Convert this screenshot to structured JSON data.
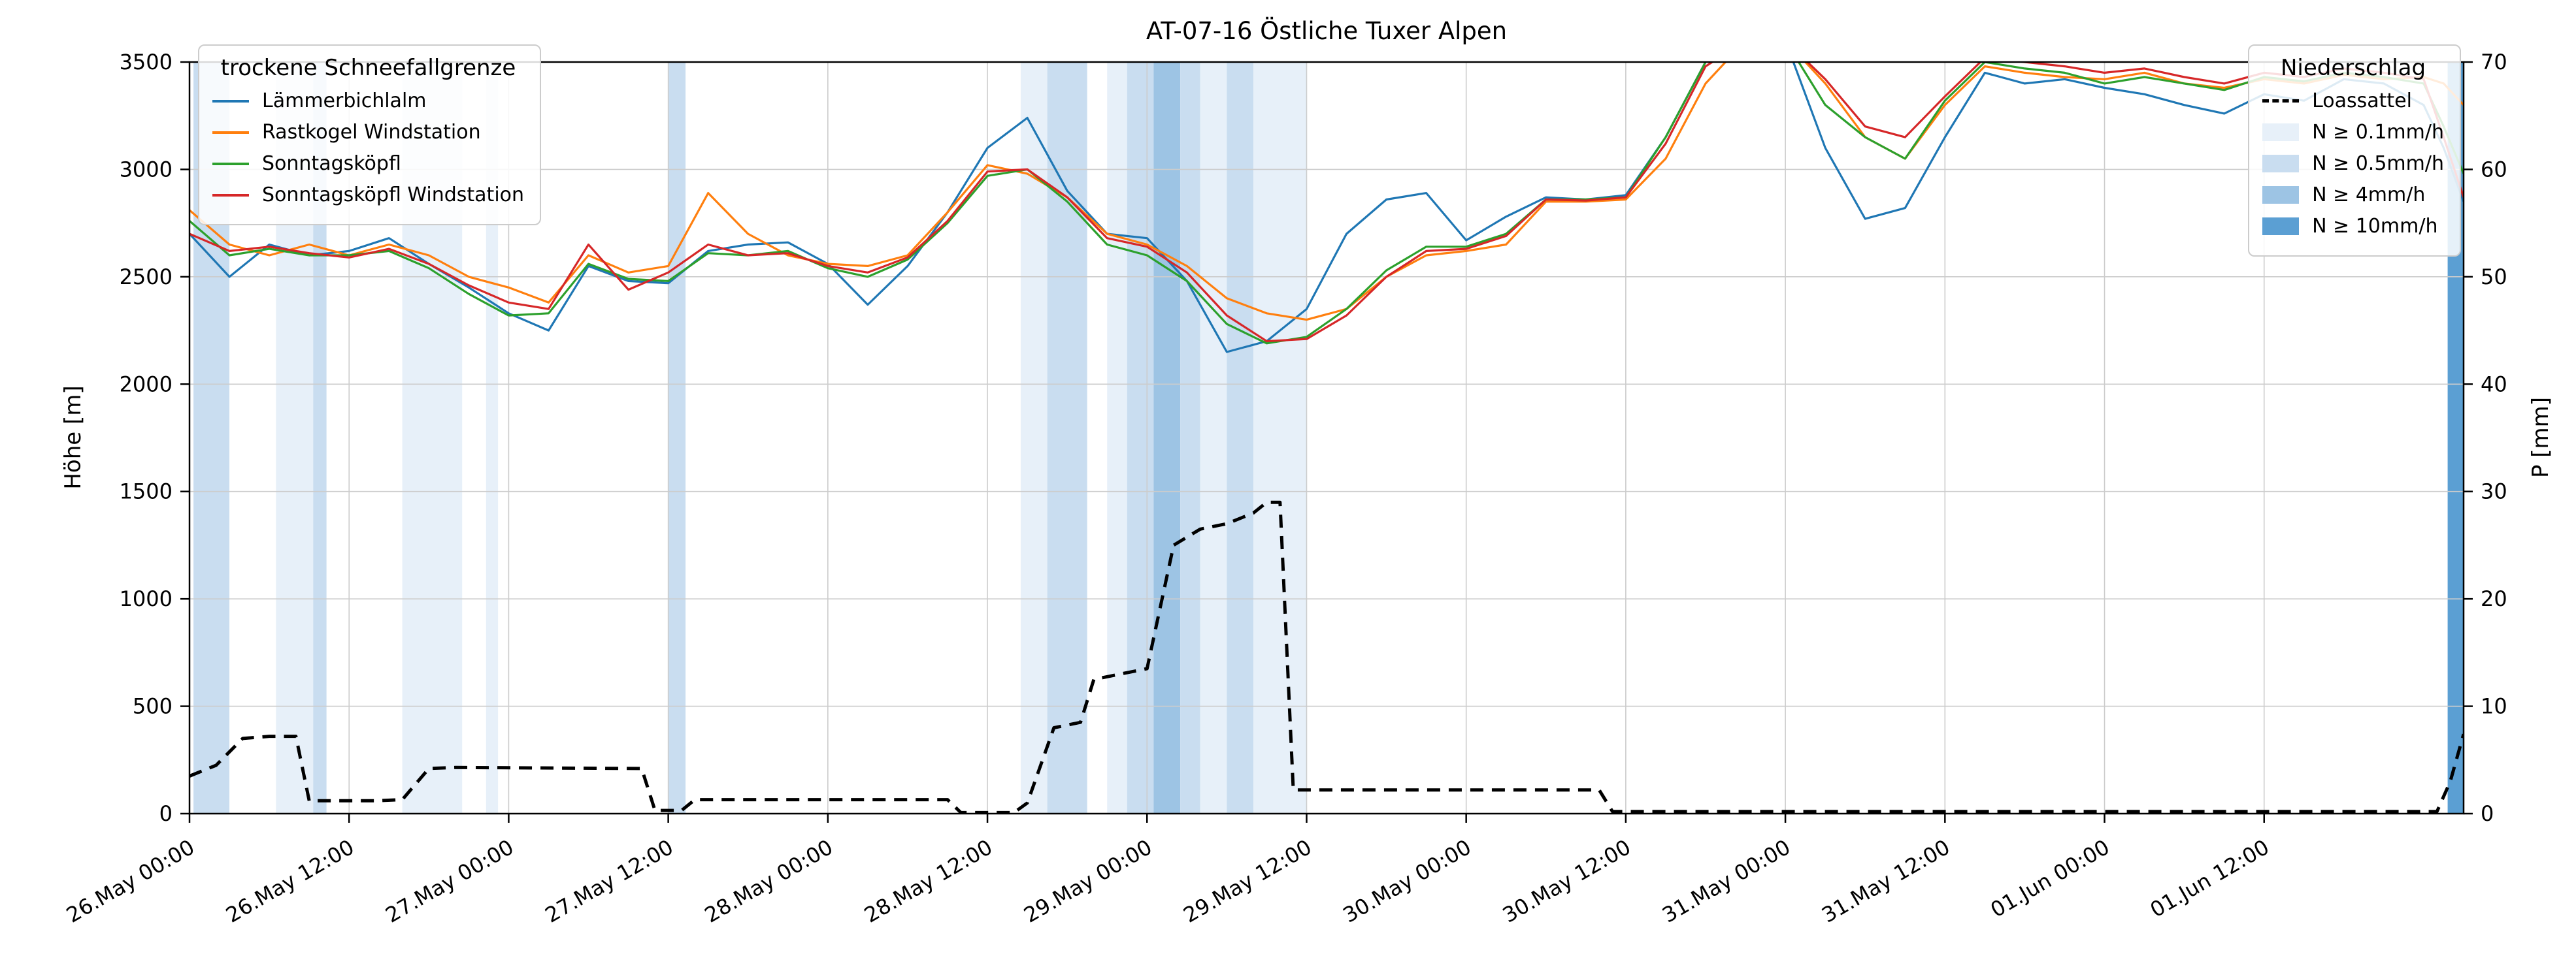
{
  "title": "AT-07-16 Östliche Tuxer Alpen",
  "axes": {
    "y_left_label": "Höhe [m]",
    "y_right_label": "P [mm]"
  },
  "legend_lines": {
    "title": "trockene Schneefallgrenze",
    "entries": [
      {
        "label": "Lämmerbichlalm",
        "color": "#1f77b4"
      },
      {
        "label": "Rastkogel Windstation",
        "color": "#ff7f0e"
      },
      {
        "label": "Sonntagsköpfl",
        "color": "#2ca02c"
      },
      {
        "label": "Sonntagsköpfl Windstation",
        "color": "#d62728"
      }
    ]
  },
  "legend_precip": {
    "title": "Niederschlag",
    "line_entry": {
      "label": "Loassattel",
      "color": "#000000"
    },
    "band_entries": [
      {
        "label": "N ≥ 0.1mm/h",
        "color": "#e7f0f9"
      },
      {
        "label": "N ≥ 0.5mm/h",
        "color": "#c9ddf0"
      },
      {
        "label": "N ≥ 4mm/h",
        "color": "#9dc4e4"
      },
      {
        "label": "N ≥ 10mm/h",
        "color": "#5b9fd3"
      }
    ]
  },
  "chart_data": {
    "type": "line",
    "title": "AT-07-16 Östliche Tuxer Alpen",
    "xlabel": "",
    "ylabel_left": "Höhe [m]",
    "ylabel_right": "P [mm]",
    "x_unit": "hours since 26.May 00:00",
    "x_range": [
      0,
      171
    ],
    "ylim_left": [
      0,
      3500
    ],
    "ylim_right": [
      0,
      70
    ],
    "grid": true,
    "y_left_ticks": [
      0,
      500,
      1000,
      1500,
      2000,
      2500,
      3000,
      3500
    ],
    "y_right_ticks": [
      0,
      10,
      20,
      30,
      40,
      50,
      60,
      70
    ],
    "x_ticks": [
      {
        "hour": 0,
        "label": "26.May 00:00"
      },
      {
        "hour": 12,
        "label": "26.May 12:00"
      },
      {
        "hour": 24,
        "label": "27.May 00:00"
      },
      {
        "hour": 36,
        "label": "27.May 12:00"
      },
      {
        "hour": 48,
        "label": "28.May 00:00"
      },
      {
        "hour": 60,
        "label": "28.May 12:00"
      },
      {
        "hour": 72,
        "label": "29.May 00:00"
      },
      {
        "hour": 84,
        "label": "29.May 12:00"
      },
      {
        "hour": 96,
        "label": "30.May 00:00"
      },
      {
        "hour": 108,
        "label": "30.May 12:00"
      },
      {
        "hour": 120,
        "label": "31.May 00:00"
      },
      {
        "hour": 132,
        "label": "31.May 12:00"
      },
      {
        "hour": 144,
        "label": "01.Jun 00:00"
      },
      {
        "hour": 156,
        "label": "01.Jun 12:00"
      }
    ],
    "x_hours": [
      0,
      3,
      6,
      9,
      12,
      15,
      18,
      21,
      24,
      27,
      30,
      33,
      36,
      39,
      42,
      45,
      48,
      51,
      54,
      57,
      60,
      63,
      66,
      69,
      72,
      75,
      78,
      81,
      84,
      87,
      90,
      93,
      96,
      99,
      102,
      105,
      108,
      111,
      114,
      117,
      120,
      123,
      126,
      129,
      132,
      135,
      138,
      141,
      144,
      147,
      150,
      153,
      156,
      159,
      162,
      165,
      168,
      169.5,
      171
    ],
    "series": [
      {
        "id": "laemmerbichlalm",
        "name": "Lämmerbichlalm",
        "color": "#1f77b4",
        "axis": "left",
        "style": "solid",
        "values": [
          2700,
          2500,
          2650,
          2600,
          2620,
          2680,
          2560,
          2450,
          2330,
          2250,
          2550,
          2480,
          2470,
          2620,
          2650,
          2660,
          2560,
          2370,
          2550,
          2800,
          3100,
          3240,
          2900,
          2700,
          2680,
          2480,
          2150,
          2200,
          2350,
          2700,
          2860,
          2890,
          2670,
          2780,
          2870,
          2860,
          2880,
          3150,
          3500,
          3600,
          3600,
          3100,
          2770,
          2820,
          3150,
          3450,
          3400,
          3420,
          3380,
          3350,
          3300,
          3260,
          3350,
          3320,
          3420,
          3400,
          3300,
          3100,
          2850
        ]
      },
      {
        "id": "rastkogel-windstation",
        "name": "Rastkogel Windstation",
        "color": "#ff7f0e",
        "axis": "left",
        "style": "solid",
        "values": [
          2810,
          2650,
          2600,
          2650,
          2600,
          2650,
          2600,
          2500,
          2450,
          2380,
          2600,
          2520,
          2550,
          2890,
          2700,
          2600,
          2560,
          2550,
          2600,
          2800,
          3020,
          2980,
          2870,
          2700,
          2650,
          2550,
          2400,
          2330,
          2300,
          2350,
          2500,
          2600,
          2620,
          2650,
          2850,
          2850,
          2860,
          3050,
          3400,
          3600,
          3600,
          3400,
          3150,
          3050,
          3300,
          3480,
          3450,
          3430,
          3420,
          3450,
          3400,
          3380,
          3420,
          3400,
          3440,
          3420,
          3430,
          3400,
          3300
        ]
      },
      {
        "id": "sonntagskoepfl",
        "name": "Sonntagsköpfl",
        "color": "#2ca02c",
        "axis": "left",
        "style": "solid",
        "values": [
          2760,
          2600,
          2630,
          2600,
          2600,
          2620,
          2540,
          2420,
          2320,
          2330,
          2560,
          2490,
          2480,
          2610,
          2600,
          2620,
          2540,
          2500,
          2580,
          2750,
          2970,
          3000,
          2850,
          2650,
          2600,
          2480,
          2280,
          2190,
          2220,
          2350,
          2530,
          2640,
          2640,
          2700,
          2860,
          2860,
          2870,
          3150,
          3500,
          3600,
          3600,
          3300,
          3150,
          3050,
          3320,
          3500,
          3470,
          3450,
          3400,
          3430,
          3400,
          3370,
          3430,
          3410,
          3450,
          3430,
          3400,
          3200,
          2980
        ]
      },
      {
        "id": "sonntagskoepfl-windstation",
        "name": "Sonntagsköpfl Windstation",
        "color": "#d62728",
        "axis": "left",
        "style": "solid",
        "values": [
          2700,
          2620,
          2640,
          2610,
          2590,
          2630,
          2560,
          2460,
          2380,
          2350,
          2650,
          2440,
          2520,
          2650,
          2600,
          2610,
          2550,
          2520,
          2590,
          2760,
          2990,
          3000,
          2870,
          2680,
          2640,
          2520,
          2320,
          2200,
          2210,
          2320,
          2500,
          2620,
          2630,
          2690,
          2860,
          2855,
          2870,
          3120,
          3480,
          3600,
          3600,
          3420,
          3200,
          3150,
          3340,
          3520,
          3500,
          3480,
          3450,
          3470,
          3430,
          3400,
          3450,
          3430,
          3470,
          3450,
          3420,
          3150,
          2870
        ]
      },
      {
        "id": "loassattel",
        "name": "Loassattel",
        "color": "#000000",
        "axis": "right",
        "style": "dashed",
        "x": [
          0,
          2,
          4,
          6,
          8,
          9,
          14,
          16,
          18,
          20,
          34,
          35,
          37,
          38,
          57,
          58,
          62,
          63,
          65,
          67,
          68,
          70,
          72,
          74,
          76,
          78,
          80,
          81,
          82,
          83,
          84,
          106,
          107,
          110,
          167,
          169,
          170,
          171
        ],
        "values": [
          3.5,
          4.5,
          7.0,
          7.2,
          7.2,
          1.2,
          1.2,
          1.3,
          4.2,
          4.3,
          4.2,
          0.3,
          0.3,
          1.3,
          1.3,
          0.1,
          0.1,
          1.0,
          8.0,
          8.5,
          12.5,
          13.0,
          13.5,
          25.0,
          26.5,
          27.0,
          28.0,
          29.0,
          29.0,
          2.2,
          2.2,
          2.2,
          0.2,
          0.2,
          0.2,
          0.2,
          3.0,
          7.4
        ]
      }
    ],
    "precip_bands": [
      {
        "start_h": 0.3,
        "end_h": 3.0,
        "level": "0.5"
      },
      {
        "start_h": 6.5,
        "end_h": 9.3,
        "level": "0.1"
      },
      {
        "start_h": 9.3,
        "end_h": 10.3,
        "level": "0.5"
      },
      {
        "start_h": 16.0,
        "end_h": 20.5,
        "level": "0.1"
      },
      {
        "start_h": 22.3,
        "end_h": 23.2,
        "level": "0.1"
      },
      {
        "start_h": 36.0,
        "end_h": 37.3,
        "level": "0.5"
      },
      {
        "start_h": 62.5,
        "end_h": 64.5,
        "level": "0.1"
      },
      {
        "start_h": 64.5,
        "end_h": 67.5,
        "level": "0.5"
      },
      {
        "start_h": 69.0,
        "end_h": 70.5,
        "level": "0.1"
      },
      {
        "start_h": 70.5,
        "end_h": 72.5,
        "level": "0.5"
      },
      {
        "start_h": 72.5,
        "end_h": 74.5,
        "level": "4"
      },
      {
        "start_h": 74.5,
        "end_h": 76.0,
        "level": "0.5"
      },
      {
        "start_h": 76.0,
        "end_h": 78.0,
        "level": "0.1"
      },
      {
        "start_h": 78.0,
        "end_h": 80.0,
        "level": "0.5"
      },
      {
        "start_h": 80.0,
        "end_h": 84.0,
        "level": "0.1"
      },
      {
        "start_h": 169.8,
        "end_h": 171.0,
        "level": "10"
      }
    ],
    "band_colors": {
      "0.1": "#e7f0f9",
      "0.5": "#c9ddf0",
      "4": "#9dc4e4",
      "10": "#5b9fd3"
    }
  }
}
